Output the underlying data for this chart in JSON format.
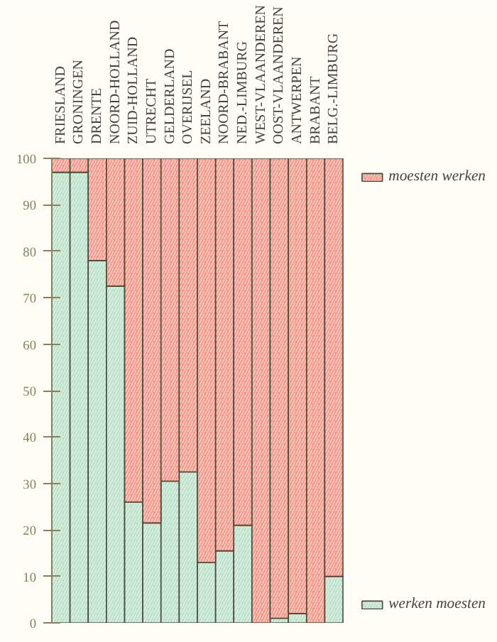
{
  "chart_data": {
    "type": "bar",
    "stacked": true,
    "categories": [
      "FRIESLAND",
      "GRONINGEN",
      "DRENTE",
      "NOORD-HOLLAND",
      "ZUID-HOLLAND",
      "UTRECHT",
      "GELDERLAND",
      "OVERIJSEL",
      "ZEELAND",
      "NOORD-BRABANT",
      "NED.-LIMBURG",
      "WEST-VLAANDEREN",
      "OOST-VLAANDEREN",
      "ANTWERPEN",
      "BRABANT",
      "BELG.-LIMBURG"
    ],
    "series": [
      {
        "name": "werken moesten",
        "color": "#9fd4b4",
        "values": [
          97,
          97,
          78,
          72.5,
          26,
          21.5,
          30.5,
          32.5,
          13,
          15.5,
          21,
          0,
          1,
          2,
          0,
          10
        ]
      },
      {
        "name": "moesten werken",
        "color": "#ec6f5c",
        "values": [
          3,
          3,
          22,
          27.5,
          74,
          78.5,
          69.5,
          67.5,
          87,
          84.5,
          79,
          100,
          99,
          98,
          100,
          90
        ]
      }
    ],
    "ylim": [
      0,
      100
    ],
    "yticks": [
      0,
      10,
      20,
      30,
      40,
      50,
      60,
      70,
      80,
      90,
      100
    ],
    "grid": false,
    "legend": "right"
  }
}
